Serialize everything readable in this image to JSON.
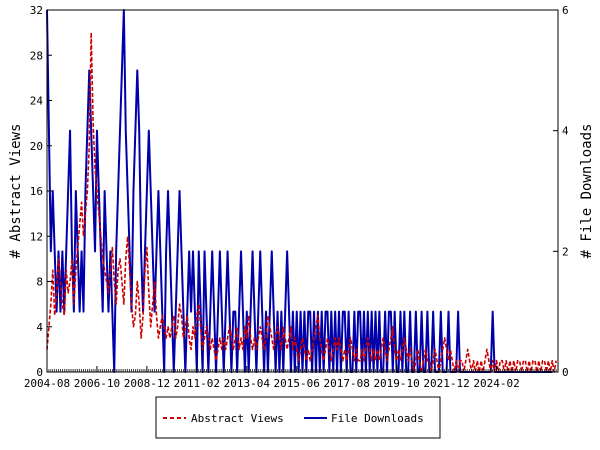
{
  "chart_data": {
    "type": "line",
    "x_tick_labels": [
      "2004-08",
      "2006-10",
      "2008-12",
      "2011-02",
      "2013-04",
      "2015-06",
      "2017-08",
      "2019-10",
      "2021-12",
      "2024-02"
    ],
    "y_left": {
      "label": "# Abstract Views",
      "ylim": [
        0,
        32
      ],
      "ticks": [
        0,
        4,
        8,
        12,
        16,
        20,
        24,
        28,
        32
      ]
    },
    "y_right": {
      "label": "# File Downloads",
      "ylim": [
        0,
        6
      ],
      "ticks": [
        0,
        2,
        4,
        6
      ]
    },
    "x_range": [
      "2004-08",
      "2025-09"
    ],
    "grid": false,
    "legend_position": "bottom-center",
    "colors": {
      "abstract_views": "#cc0000",
      "file_downloads": "#0000aa"
    },
    "series": [
      {
        "name": "Abstract Views",
        "axis": "left",
        "style": "dashed",
        "values": [
          2,
          4,
          6,
          9,
          5,
          7,
          10,
          8,
          6,
          5,
          9,
          7,
          8,
          10,
          6,
          9,
          11,
          13,
          15,
          12,
          14,
          16,
          20,
          30,
          22,
          18,
          16,
          14,
          12,
          10,
          9,
          8,
          7,
          9,
          11,
          8,
          6,
          9,
          10,
          8,
          6,
          10,
          12,
          9,
          6,
          4,
          5,
          8,
          6,
          3,
          5,
          9,
          11,
          7,
          4,
          6,
          8,
          5,
          3,
          4,
          5,
          4,
          3,
          4,
          3,
          4,
          5,
          3,
          4,
          6,
          5,
          3,
          4,
          5,
          3,
          2,
          4,
          3,
          5,
          6,
          4,
          2,
          3,
          4,
          3,
          2,
          3,
          2,
          1,
          2,
          3,
          2,
          3,
          2,
          3,
          4,
          3,
          2,
          3,
          4,
          2,
          3,
          2,
          4,
          3,
          5,
          3,
          2,
          3,
          2,
          3,
          4,
          3,
          2,
          3,
          5,
          4,
          3,
          2,
          3,
          4,
          3,
          2,
          4,
          3,
          2,
          3,
          4,
          2,
          3,
          2,
          1,
          2,
          3,
          2,
          1,
          2,
          1,
          2,
          3,
          4,
          5,
          3,
          2,
          1,
          2,
          3,
          2,
          1,
          2,
          3,
          2,
          3,
          2,
          1,
          2,
          1,
          2,
          3,
          2,
          1,
          2,
          1,
          1,
          2,
          1,
          2,
          3,
          2,
          1,
          2,
          1,
          2,
          1,
          2,
          3,
          2,
          1,
          2,
          3,
          4,
          2,
          1,
          2,
          1,
          2,
          3,
          2,
          1,
          2,
          1,
          0,
          1,
          2,
          1,
          0,
          1,
          2,
          1,
          1,
          0,
          1,
          2,
          1,
          0,
          1,
          2,
          3,
          2,
          1,
          2,
          1,
          0,
          1,
          0,
          1,
          1,
          0,
          1,
          2,
          1,
          0,
          1,
          0,
          1,
          0,
          1,
          0,
          1,
          2,
          1,
          0,
          1,
          0,
          1,
          0,
          1,
          1,
          0,
          1,
          0,
          1,
          0,
          1,
          0,
          1,
          1,
          0,
          1,
          1,
          0,
          1,
          0,
          1,
          1,
          0,
          1,
          0,
          1,
          1,
          0,
          1,
          0,
          1,
          0,
          1
        ]
      },
      {
        "name": "File Downloads",
        "axis": "right",
        "style": "solid",
        "values": [
          6,
          4,
          2,
          3,
          2,
          1,
          2,
          1,
          2,
          1,
          2,
          3,
          4,
          2,
          1,
          3,
          2,
          1,
          2,
          1,
          3,
          4,
          5,
          4,
          3,
          2,
          4,
          3,
          2,
          1,
          3,
          2,
          1,
          2,
          1,
          0,
          2,
          3,
          4,
          5,
          6,
          4,
          3,
          2,
          1,
          3,
          4,
          5,
          4,
          2,
          1,
          2,
          3,
          4,
          3,
          2,
          1,
          2,
          3,
          2,
          1,
          0,
          2,
          3,
          2,
          1,
          0,
          1,
          2,
          3,
          2,
          1,
          0,
          1,
          2,
          1,
          2,
          1,
          0,
          2,
          1,
          0,
          2,
          1,
          0,
          1,
          2,
          1,
          0,
          1,
          2,
          1,
          0,
          1,
          2,
          1,
          0,
          1,
          1,
          0,
          1,
          2,
          1,
          0,
          1,
          0,
          1,
          2,
          1,
          0,
          1,
          2,
          1,
          0,
          1,
          0,
          1,
          2,
          1,
          0,
          1,
          0,
          1,
          0,
          1,
          2,
          1,
          0,
          1,
          0,
          1,
          0,
          1,
          0,
          1,
          0,
          1,
          1,
          0,
          1,
          0,
          1,
          0,
          1,
          0,
          1,
          1,
          0,
          1,
          0,
          1,
          0,
          1,
          0,
          1,
          1,
          0,
          1,
          0,
          0,
          1,
          0,
          1,
          1,
          0,
          1,
          0,
          1,
          0,
          1,
          0,
          1,
          0,
          1,
          0,
          0,
          1,
          0,
          1,
          1,
          0,
          1,
          0,
          0,
          1,
          0,
          1,
          0,
          0,
          1,
          0,
          0,
          1,
          0,
          0,
          1,
          0,
          0,
          1,
          0,
          0,
          1,
          0,
          0,
          0,
          1,
          0,
          0,
          0,
          1,
          0,
          0,
          0,
          0,
          1,
          0,
          0,
          0,
          0,
          0,
          0,
          0,
          0,
          0,
          0,
          0,
          0,
          0,
          0,
          0,
          0,
          0,
          1,
          0,
          0,
          0,
          0,
          0,
          0,
          0,
          0,
          0,
          0,
          0,
          0,
          0,
          0,
          0,
          0,
          0,
          0,
          0,
          0,
          0,
          0,
          0,
          0,
          0,
          0,
          0,
          0,
          0,
          0,
          0
        ]
      }
    ]
  }
}
